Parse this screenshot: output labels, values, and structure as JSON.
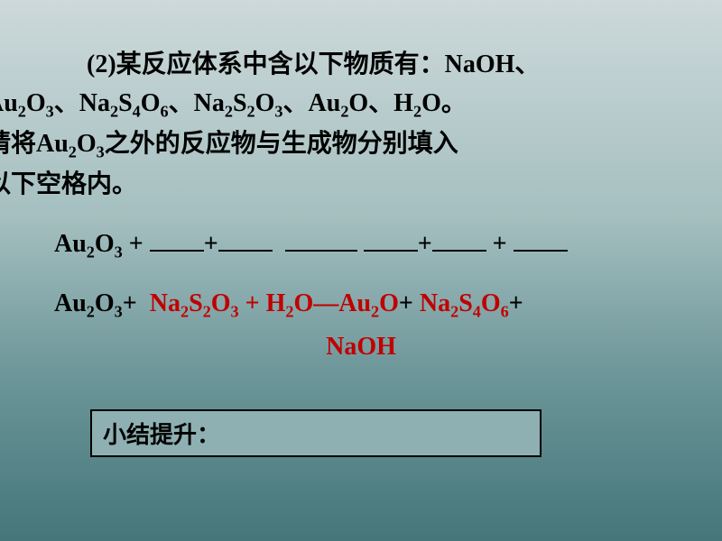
{
  "slide": {
    "background_gradient": [
      "#cdd9da",
      "#a5bfc0",
      "#6b9598",
      "#45767a"
    ],
    "text_color": "#000000",
    "highlight_color": "#c00000",
    "font_size_pt": 28
  },
  "intro": {
    "prefix": "(2)",
    "body1": "某反应体系中含以下物质有：NaOH、",
    "body2_parts": [
      "Au",
      "O",
      "、Na",
      "S",
      "O",
      "、Na",
      "S",
      "O",
      "、Au",
      "O、H",
      "O。"
    ],
    "body3_a": "请将Au",
    "body3_b": "O",
    "body3_c": "之外的反应物与生成物分别填入",
    "body4": "以下空格内。"
  },
  "equation_template": {
    "lead": "Au",
    "lead_o": "O",
    "plus": " + ",
    "plus2": "+",
    "arrow_long": true
  },
  "equation_filled": {
    "r1": "Au",
    "r1o": "O",
    "r2": "Na",
    "r2s": "S",
    "r2o": "O",
    "r3": "H",
    "r3o": "O",
    "p1": "Au",
    "p1o": "O",
    "p2": "Na",
    "p2s": "S",
    "p2o": "O",
    "p3": "NaOH",
    "plus": "+ ",
    "plus_sp": " + ",
    "dash": "—"
  },
  "subs": {
    "two": "2",
    "three": "3",
    "four": "4",
    "six": "6"
  },
  "summary": {
    "label": "小结提升："
  }
}
